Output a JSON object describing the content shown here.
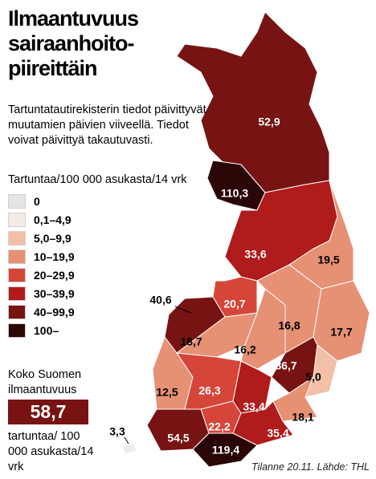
{
  "title": [
    "Ilmaantuvuus",
    "sairaanhoito-",
    "piireittäin"
  ],
  "description": "Tartuntatautirekisterin tiedot päivittyvät muutamien päivien viiveellä. Tiedot voivat päivittyä takautuvasti.",
  "legend": {
    "title": "Tartuntaa/100 000 asukasta/14 vrk",
    "items": [
      {
        "label": "0",
        "color": "#e4e4e4"
      },
      {
        "label": "0,1–4,9",
        "color": "#f4ebe7"
      },
      {
        "label": "5,0–9,9",
        "color": "#f2bfa7"
      },
      {
        "label": "10–19,9",
        "color": "#e69074"
      },
      {
        "label": "20–29,9",
        "color": "#d64638"
      },
      {
        "label": "30–39,9",
        "color": "#b01b1b"
      },
      {
        "label": "40–99,9",
        "color": "#781313"
      },
      {
        "label": "100–",
        "color": "#2a0606"
      }
    ]
  },
  "total": {
    "label": "Koko Suomen ilmaantuvuus",
    "value": "58,7",
    "unit": "tartuntaa/ 100 000 asukasta/14 vrk"
  },
  "regions": [
    "52,9",
    "110,3",
    "33,6",
    "19,5",
    "20,7",
    "40,6",
    "18,7",
    "16,2",
    "16,8",
    "17,7",
    "12,5",
    "26,3",
    "86,7",
    "5,0",
    "33,4",
    "18,1",
    "22,2",
    "54,5",
    "35,4",
    "119,4",
    "3,3"
  ],
  "source": "Tilanne 20.11. Lähde: THL"
}
